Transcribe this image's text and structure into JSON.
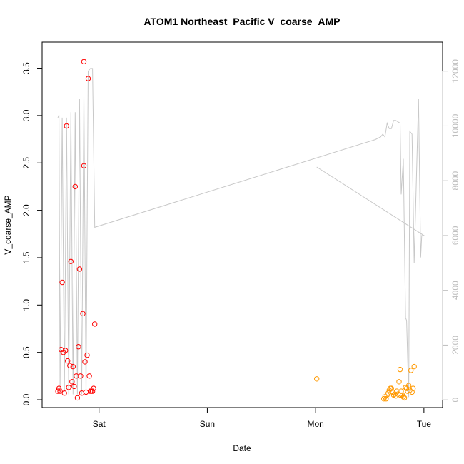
{
  "chart_data": {
    "type": "scatter",
    "title": "ATOM1 Northeast_Pacific V_coarse_AMP",
    "xlabel": "Date",
    "ylabel": "V_coarse_AMP",
    "x_ticks": [
      "Sat",
      "Sun",
      "Mon",
      "Tue"
    ],
    "x_tick_values": [
      1,
      2,
      3,
      4
    ],
    "xlim": [
      0.58,
      4.08
    ],
    "ylim": [
      -0.03,
      3.7
    ],
    "y_ticks": [
      "0.0",
      "0.5",
      "1.0",
      "1.5",
      "2.0",
      "2.5",
      "3.0",
      "3.5"
    ],
    "y_tick_values": [
      0,
      0.5,
      1.0,
      1.5,
      2.0,
      2.5,
      3.0,
      3.5
    ],
    "ylim_right": [
      -100,
      12800
    ],
    "y_ticks_right": [
      "0",
      "2000",
      "4000",
      "6000",
      "8000",
      "10000",
      "12000"
    ],
    "y_tick_values_right": [
      0,
      2000,
      4000,
      6000,
      8000,
      10000,
      12000
    ],
    "grid": false,
    "colors": {
      "series1": "#ff0000",
      "series2": "#ff9900",
      "line": "#c8c8c8",
      "right_axis": "#bdbdbd"
    },
    "series": [
      {
        "marker": "circle",
        "color": "#ff0000",
        "points": [
          [
            0.62,
            0.09
          ],
          [
            0.63,
            0.12
          ],
          [
            0.64,
            0.09
          ],
          [
            0.65,
            0.53
          ],
          [
            0.66,
            1.24
          ],
          [
            0.67,
            0.5
          ],
          [
            0.68,
            0.07
          ],
          [
            0.69,
            0.52
          ],
          [
            0.7,
            2.89
          ],
          [
            0.71,
            0.41
          ],
          [
            0.72,
            0.13
          ],
          [
            0.73,
            0.36
          ],
          [
            0.74,
            1.46
          ],
          [
            0.75,
            0.19
          ],
          [
            0.76,
            0.35
          ],
          [
            0.77,
            0.14
          ],
          [
            0.78,
            2.25
          ],
          [
            0.79,
            0.25
          ],
          [
            0.8,
            0.02
          ],
          [
            0.81,
            0.56
          ],
          [
            0.82,
            1.38
          ],
          [
            0.83,
            0.25
          ],
          [
            0.84,
            0.07
          ],
          [
            0.85,
            0.91
          ],
          [
            0.86,
            2.47
          ],
          [
            0.86,
            3.57
          ],
          [
            0.87,
            0.4
          ],
          [
            0.88,
            0.08
          ],
          [
            0.89,
            0.47
          ],
          [
            0.9,
            3.39
          ],
          [
            0.91,
            0.25
          ],
          [
            0.92,
            0.09
          ],
          [
            0.93,
            0.09
          ],
          [
            0.94,
            0.09
          ],
          [
            0.95,
            0.12
          ],
          [
            0.96,
            0.8
          ]
        ]
      },
      {
        "marker": "circle",
        "color": "#ff9900",
        "points": [
          [
            3.01,
            0.22
          ],
          [
            3.63,
            0.01
          ],
          [
            3.64,
            0.03
          ],
          [
            3.65,
            0.01
          ],
          [
            3.66,
            0.05
          ],
          [
            3.67,
            0.07
          ],
          [
            3.68,
            0.1
          ],
          [
            3.69,
            0.12
          ],
          [
            3.7,
            0.12
          ],
          [
            3.71,
            0.08
          ],
          [
            3.72,
            0.05
          ],
          [
            3.73,
            0.06
          ],
          [
            3.74,
            0.04
          ],
          [
            3.75,
            0.09
          ],
          [
            3.76,
            0.06
          ],
          [
            3.77,
            0.19
          ],
          [
            3.78,
            0.32
          ],
          [
            3.78,
            0.05
          ],
          [
            3.79,
            0.09
          ],
          [
            3.8,
            0.05
          ],
          [
            3.81,
            0.03
          ],
          [
            3.82,
            0.02
          ],
          [
            3.83,
            0.13
          ],
          [
            3.84,
            0.12
          ],
          [
            3.85,
            0.09
          ],
          [
            3.86,
            0.15
          ],
          [
            3.87,
            0.1
          ],
          [
            3.88,
            0.31
          ],
          [
            3.89,
            0.08
          ],
          [
            3.9,
            0.12
          ],
          [
            3.91,
            0.35
          ]
        ]
      },
      {
        "type": "line",
        "axis": "right",
        "color": "#c8c8c8",
        "points": [
          [
            0.62,
            10300
          ],
          [
            0.63,
            10400
          ],
          [
            0.64,
            400
          ],
          [
            0.66,
            10300
          ],
          [
            0.68,
            300
          ],
          [
            0.7,
            10300
          ],
          [
            0.72,
            200
          ],
          [
            0.74,
            10500
          ],
          [
            0.76,
            200
          ],
          [
            0.78,
            10500
          ],
          [
            0.8,
            200
          ],
          [
            0.82,
            11000
          ],
          [
            0.84,
            200
          ],
          [
            0.86,
            11100
          ],
          [
            0.88,
            200
          ],
          [
            0.9,
            12000
          ],
          [
            0.92,
            12100
          ],
          [
            0.94,
            12100
          ],
          [
            0.96,
            6300
          ],
          [
            3.55,
            9500
          ],
          [
            3.6,
            9600
          ],
          [
            3.62,
            9700
          ],
          [
            3.64,
            9600
          ],
          [
            3.66,
            10100
          ],
          [
            3.68,
            9900
          ],
          [
            3.7,
            9900
          ],
          [
            3.72,
            10200
          ],
          [
            3.74,
            10200
          ],
          [
            3.78,
            10100
          ],
          [
            3.79,
            7500
          ],
          [
            3.81,
            8800
          ],
          [
            3.83,
            3000
          ],
          [
            3.84,
            2900
          ],
          [
            3.86,
            100
          ],
          [
            3.87,
            9800
          ],
          [
            3.89,
            9700
          ],
          [
            3.91,
            5000
          ],
          [
            3.95,
            11000
          ],
          [
            3.97,
            5200
          ],
          [
            3.98,
            6000
          ],
          [
            4.0,
            6000
          ],
          [
            3.01,
            8500
          ]
        ]
      }
    ]
  }
}
